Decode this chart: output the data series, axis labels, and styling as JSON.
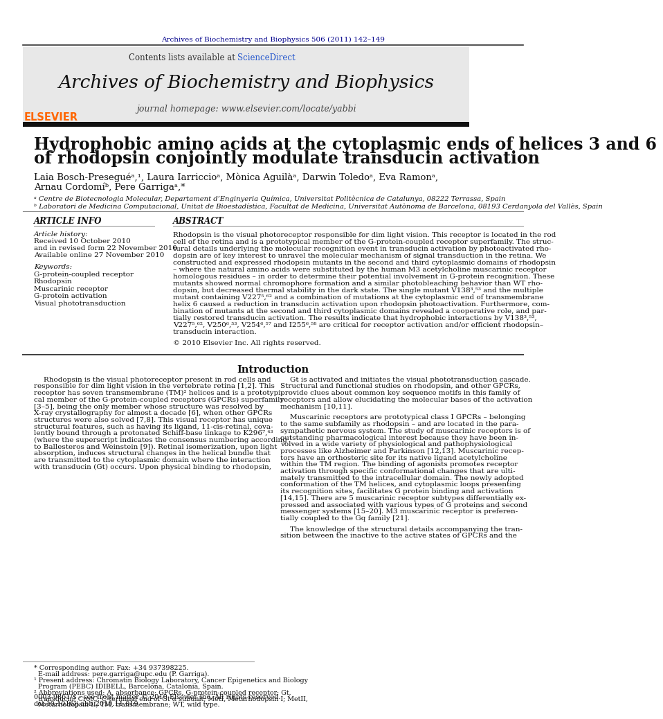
{
  "page_bg": "#ffffff",
  "header_journal_line": "Archives of Biochemistry and Biophysics 506 (2011) 142–149",
  "header_journal_color": "#00008B",
  "journal_header_bg": "#e8e8e8",
  "journal_title": "Archives of Biochemistry and Biophysics",
  "journal_homepage": "journal homepage: www.elsevier.com/locate/yabbi",
  "contents_line": "Contents lists available at",
  "sciencedirect": "ScienceDirect",
  "elsevier_color": "#FF6600",
  "article_title_line1": "Hydrophobic amino acids at the cytoplasmic ends of helices 3 and 6",
  "article_title_line2": "of rhodopsin conjointly modulate transducin activation",
  "authors": "Laia Bosch-Preseguéᵃ,¹, Laura Iarriccioᵃ, Mònica Aguilàᵃ, Darwin Toledoᵃ, Eva Ramonᵃ,",
  "authors2": "Arnau Cordomíᵇ, Pere Garrigaᵃ,*",
  "affil_a": "ᵃ Centre de Biotecnologia Molecular, Departament d’Enginyeria Química, Universitat Politècnica de Catalunya, 08222 Terrassa, Spain",
  "affil_b": "ᵇ Laboratori de Medicina Computacional, Unitat de Bioestadística, Facultat de Medicina, Universitat Autònoma de Barcelona, 08193 Cerdanyola del Vallès, Spain",
  "article_info_title": "ARTICLE INFO",
  "abstract_title": "ABSTRACT",
  "article_history": "Article history:",
  "received": "Received 10 October 2010",
  "revised": "and in revised form 22 November 2010",
  "available": "Available online 27 November 2010",
  "keywords_title": "Keywords:",
  "keyword1": "G-protein-coupled receptor",
  "keyword2": "Rhodopsin",
  "keyword3": "Muscarinic receptor",
  "keyword4": "G-protein activation",
  "keyword5": "Visual phototransduction",
  "abstract_text": "Rhodopsin is the visual photoreceptor responsible for dim light vision. This receptor is located in the rod\ncell of the retina and is a prototypical member of the G-protein-coupled receptor superfamily. The struc-\ntural details underlying the molecular recognition event in transducin activation by photoactivated rho-\ndopsin are of key interest to unravel the molecular mechanism of signal transduction in the retina. We\nconstructed and expressed rhodopsin mutants in the second and third cytoplasmic domains of rhodopsin\n– where the natural amino acids were substituted by the human M3 acetylcholine muscarinic receptor\nhomologous residues – in order to determine their potential involvement in G-protein recognition. These\nmutants showed normal chromophore formation and a similar photobleaching behavior than WT rho-\ndopsin, but decreased thermal stability in the dark state. The single mutant V138³,⁵³ and the multiple\nmutant containing V227⁵,⁶² and a combination of mutations at the cytoplasmic end of transmembrane\nhelix 6 caused a reduction in transducin activation upon rhodopsin photoactivation. Furthermore, com-\nbination of mutants at the second and third cytoplasmic domains revealed a cooperative role, and par-\ntially restored transducin activation. The results indicate that hydrophobic interactions by V138³,⁵³,\nV227⁵,⁶², V250⁶,⁵³, V254⁶,⁵⁷ and I255⁶,⁵⁸ are critical for receptor activation and/or efficient rhodopsin–\ntransducin interaction.",
  "copyright": "© 2010 Elsevier Inc. All rights reserved.",
  "intro_title": "Introduction",
  "intro_col1_p1": "Rhodopsin is the visual photoreceptor present in rod cells and\nresponsible for dim light vision in the vertebrate retina [1,2]. This\nreceptor has seven transmembrane (TM)² helices and is a prototypi-\ncal member of the G-protein-coupled receptors (GPCRs) superfamily\n[3–5], being the only member whose structure was resolved by\nX-ray crystallography for almost a decade [6], when other GPCRs\nstructures were also solved [7,8]. This visual receptor has unique\nstructural features, such as having its ligand, 11-cis-retinal, cova-\nlently bound through a protonated Schiff-base linkage to K296⁷,⁴³\n(where the superscript indicates the consensus numbering according\nto Ballesteros and Weinstein [9]). Retinal isomerization, upon light\nabsorption, induces structural changes in the helical bundle that\nare transmitted to the cytoplasmic domain where the interaction\nwith transducin (Gt) occurs. Upon physical binding to rhodopsin,",
  "intro_col2_p1": "Gt is activated and initiates the visual phototransduction cascade.\nStructural and functional studies on rhodopsin, and other GPCRs,\nprovide clues about common key sequence motifs in this family of\nreceptors and allow elucidating the molecular bases of the activation\nmechanism [10,11].",
  "intro_col2_p2": "Muscarinic receptors are prototypical class I GPCRs – belonging\nto the same subfamily as rhodopsin – and are located in the para-\nsympathetic nervous system. The study of muscarinic receptors is of\noutstanding pharmacological interest because they have been in-\nvolved in a wide variety of physiological and pathophysiological\nprocesses like Alzheimer and Parkinson [12,13]. Muscarinic recep-\ntors have an orthosteric site for its native ligand acetylcholine\nwithin the TM region. The binding of agonists promotes receptor\nactivation through specific conformational changes that are ulti-\nmately transmitted to the intracellular domain. The newly adopted\nconformation of the TM helices, and cytoplasmic loops presenting\nits recognition sites, facilitates G protein binding and activation\n[14,15]. There are 5 muscarinic receptor subtypes differentially ex-\npressed and associated with various types of G proteins and second\nmessenger systems [15–20]. M3 muscarinic receptor is preferen-\ntially coupled to the Gq family [21].",
  "intro_col2_p3": "The knowledge of the structural details accompanying the tran-\nsition between the inactive to the active states of GPCRs and the",
  "footnote1": "* Corresponding author. Fax: +34 937398225.",
  "footnote2": "  E-mail address: pere.garriga@upc.edu (P. Garriga).",
  "footnote3": "¹ Present address: Chromatin Biology Laboratory, Cancer Epigenetics and Biology",
  "footnote4": "  Program (PEBC) IDIBELL, Barcelona, Catalonia, Spain.",
  "footnote5": "² Abbreviations used: A, absorbance; GPCRs, G-protein-coupled receptor; Gt,",
  "footnote6": "  transducin; CrotC, C-terminal end of Gt α subunit; MetI, Metarhodopsin I; MetII,",
  "footnote7": "  Metarhodopsin II; TM, transmembrane; WT, wild type.",
  "issn_line": "0003-9861/$ - see front matter © 2010 Elsevier Inc. All rights reserved.",
  "doi_line": "doi:10.1016/j.abb.2010.11.019"
}
